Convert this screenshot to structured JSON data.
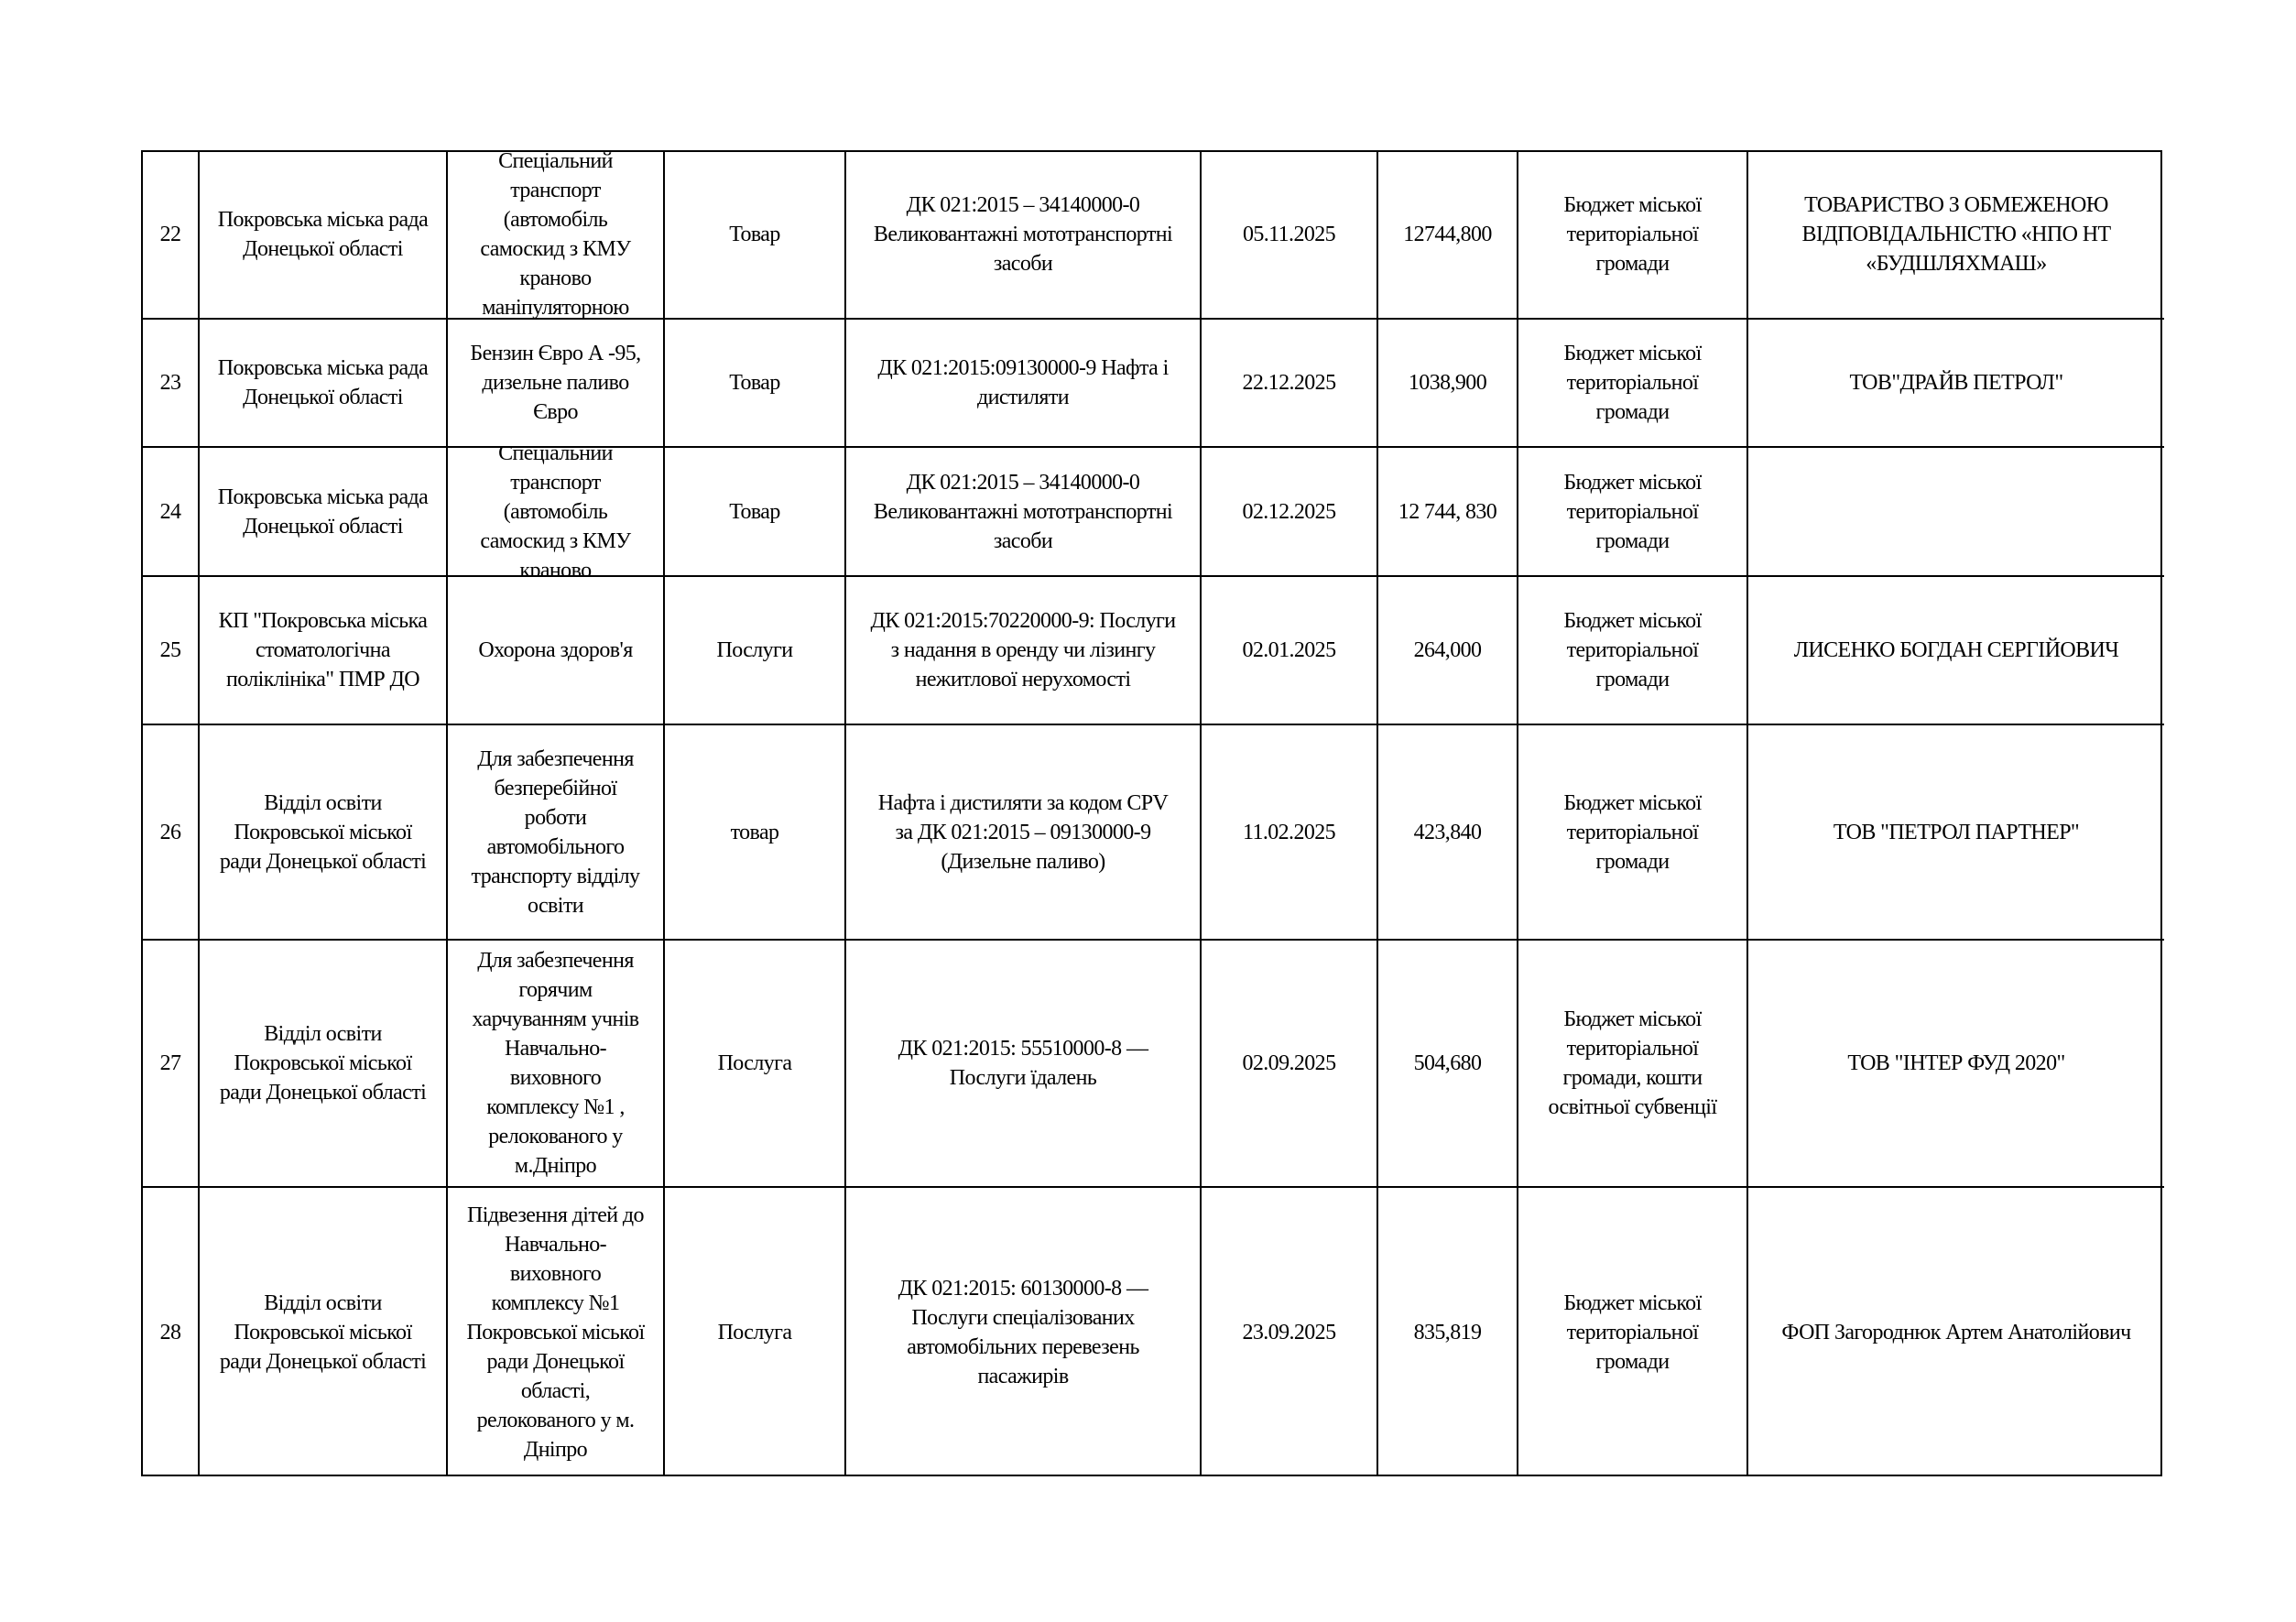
{
  "table": {
    "rows": [
      {
        "no": "22",
        "customer": "Покровська міська рада\nДонецької області",
        "subject": "Спеціальний\nтранспорт\n(автомобіль\nсамоскид з КМУ\nкраново\nманіпуляторною",
        "type": "Товар",
        "code": "ДК 021:2015 – 34140000-0\nВеликовантажні мототранспортні\nзасоби",
        "date": "05.11.2025",
        "amount": "12744,800",
        "source": "Бюджет міської\nтериторіальної\nгромади",
        "supplier": "ТОВАРИСТВО З ОБМЕЖЕНОЮ\nВІДПОВІДАЛЬНІСТЮ «НПО НТ\n«БУДШЛЯХМАШ»"
      },
      {
        "no": "23",
        "customer": "Покровська міська рада\nДонецької області",
        "subject": "Бензин Євро А -95,\nдизельне паливо\nЄвро",
        "type": "Товар",
        "code": "ДК 021:2015:09130000-9 Нафта і\nдистиляти",
        "date": "22.12.2025",
        "amount": "1038,900",
        "source": "Бюджет міської\nтериторіальної\nгромади",
        "supplier": "ТОВ\"ДРАЙВ ПЕТРОЛ\""
      },
      {
        "no": "24",
        "customer": "Покровська міська рада\nДонецької області",
        "subject": "Спеціальний\nтранспорт\n(автомобіль\nсамоскид з КМУ\nкраново",
        "type": "Товар",
        "code": "ДК 021:2015 – 34140000-0\nВеликовантажні мототранспортні\nзасоби",
        "date": "02.12.2025",
        "amount": "12 744, 830",
        "source": "Бюджет міської\nтериторіальної\nгромади",
        "supplier": ""
      },
      {
        "no": "25",
        "customer": "КП \"Покровська міська\nстоматологічна\nполіклініка\" ПМР ДО",
        "subject": "Охорона здоров'я",
        "type": "Послуги",
        "code": "ДК 021:2015:70220000-9: Послуги\nз надання в оренду чи лізингу\nнежитлової нерухомості\n ",
        "date": "02.01.2025",
        "amount": "264,000",
        "source": "Бюджет міської\nтериторіальної\nгромади",
        "supplier": "ЛИСЕНКО БОГДАН СЕРГІЙОВИЧ"
      },
      {
        "no": "26",
        "customer": "Відділ освіти\nПокровської міської\nради Донецької області",
        "subject": "Для забезпечення\nбезперебійної\nроботи\nавтомобільного\nтранспорту відділу\nосвіти",
        "type": "товар",
        "code": "Нафта і дистиляти за кодом CPV\nза ДК 021:2015 – 09130000-9\n(Дизельне паливо)",
        "date": "11.02.2025",
        "amount": "423,840",
        "source": "Бюджет міської\nтериторіальної\nгромади",
        "supplier": "ТОВ  \"ПЕТРОЛ ПАРТНЕР\""
      },
      {
        "no": "27",
        "customer": "Відділ освіти\nПокровської міської\nради Донецької області",
        "subject": "Для забезпечення\nгорячим\nхарчуванням учнів\nНавчально-\nвиховного\nкомплексу №1 ,\nрелокованого у\nм.Дніпро",
        "type": "Послуга",
        "code": "ДК 021:2015: 55510000-8 —\nПослуги їдалень",
        "date": "02.09.2025",
        "amount": "504,680",
        "source": "Бюджет міської\nтериторіальної\nгромади, кошти\nосвітньої субвенції",
        "supplier": "ТОВ \"ІНТЕР ФУД 2020\""
      },
      {
        "no": "28",
        "customer": "Відділ освіти\nПокровської міської\nради Донецької області",
        "subject": "Підвезення дітей до\nНавчально-\nвиховного\nкомплексу №1\nПокровської міської\nради Донецької\nобласті,\nрелокованого у м.\nДніпро",
        "type": "Послуга",
        "code": "ДК 021:2015: 60130000-8 —\nПослуги спеціалізованих\nавтомобільних перевезень\nпасажирів",
        "date": "23.09.2025",
        "amount": "835,819",
        "source": "Бюджет міської\nтериторіальної\nгромади",
        "supplier": "ФОП Загороднюк Артем Анатолійович"
      }
    ]
  }
}
